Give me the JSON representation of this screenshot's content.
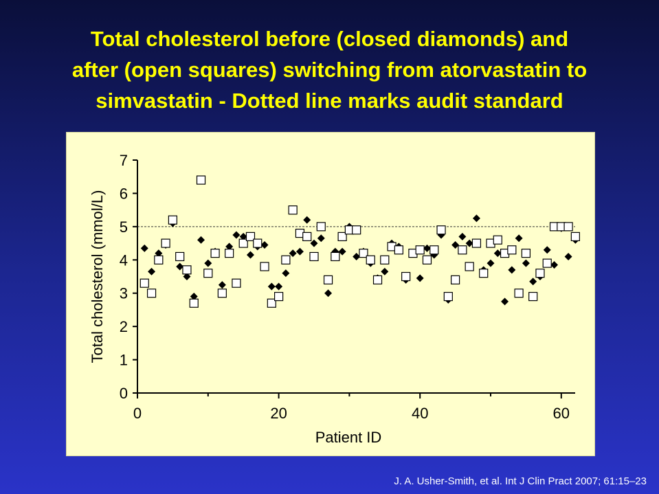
{
  "slide": {
    "title_lines": [
      "Total cholesterol before (closed diamonds) and",
      "after (open squares) switching from atorvastatin to",
      "simvastatin - Dotted line marks audit standard"
    ],
    "citation": "J. A. Usher-Smith, et al. Int J Clin Pract 2007; 61:15–23",
    "title_color": "#ffff00",
    "panel_color": "#ffffcc"
  },
  "chart_data": {
    "type": "scatter",
    "title": "",
    "xlabel": "Patient ID",
    "ylabel": "Total cholesterol (mmol/L)",
    "xlim": [
      0,
      62
    ],
    "ylim": [
      0,
      7
    ],
    "x_ticks": [
      "0",
      "20",
      "40",
      "60"
    ],
    "y_ticks": [
      "0",
      "1",
      "2",
      "3",
      "4",
      "5",
      "6",
      "7"
    ],
    "grid": false,
    "reference_line": {
      "y": 5,
      "style": "dotted"
    },
    "series": [
      {
        "marker": "filled-diamond",
        "color": "#000000",
        "points": [
          [
            1,
            4.35
          ],
          [
            2,
            3.65
          ],
          [
            3,
            4.2
          ],
          [
            4,
            4.45
          ],
          [
            5,
            5.1
          ],
          [
            6,
            3.8
          ],
          [
            7,
            3.5
          ],
          [
            8,
            2.9
          ],
          [
            9,
            4.6
          ],
          [
            10,
            3.9
          ],
          [
            11,
            4.25
          ],
          [
            12,
            3.25
          ],
          [
            13,
            4.4
          ],
          [
            14,
            4.75
          ],
          [
            15,
            4.7
          ],
          [
            16,
            4.15
          ],
          [
            17,
            4.4
          ],
          [
            18,
            4.45
          ],
          [
            19,
            3.2
          ],
          [
            20,
            3.2
          ],
          [
            21,
            3.6
          ],
          [
            22,
            4.2
          ],
          [
            23,
            4.25
          ],
          [
            24,
            5.2
          ],
          [
            25,
            4.5
          ],
          [
            26,
            4.65
          ],
          [
            27,
            3.0
          ],
          [
            28,
            4.25
          ],
          [
            29,
            4.25
          ],
          [
            30,
            5.0
          ],
          [
            31,
            4.1
          ],
          [
            32,
            4.25
          ],
          [
            33,
            3.9
          ],
          [
            34,
            3.45
          ],
          [
            35,
            3.65
          ],
          [
            36,
            4.5
          ],
          [
            37,
            4.4
          ],
          [
            38,
            3.4
          ],
          [
            39,
            4.2
          ],
          [
            40,
            3.45
          ],
          [
            41,
            4.35
          ],
          [
            42,
            4.15
          ],
          [
            43,
            4.75
          ],
          [
            44,
            2.8
          ],
          [
            45,
            4.45
          ],
          [
            46,
            4.7
          ],
          [
            47,
            4.5
          ],
          [
            48,
            5.25
          ],
          [
            49,
            3.7
          ],
          [
            50,
            3.9
          ],
          [
            51,
            4.2
          ],
          [
            52,
            2.75
          ],
          [
            53,
            3.7
          ],
          [
            54,
            4.65
          ],
          [
            55,
            3.9
          ],
          [
            56,
            3.35
          ],
          [
            57,
            3.5
          ],
          [
            58,
            4.3
          ],
          [
            59,
            3.85
          ],
          [
            60,
            4.95
          ],
          [
            61,
            4.1
          ],
          [
            62,
            4.6
          ]
        ]
      },
      {
        "marker": "open-square",
        "color": "#000000",
        "points": [
          [
            1,
            3.3
          ],
          [
            2,
            3.0
          ],
          [
            3,
            4.0
          ],
          [
            4,
            4.5
          ],
          [
            5,
            5.2
          ],
          [
            6,
            4.1
          ],
          [
            7,
            3.7
          ],
          [
            8,
            2.7
          ],
          [
            9,
            6.4
          ],
          [
            10,
            3.6
          ],
          [
            11,
            4.2
          ],
          [
            12,
            3.0
          ],
          [
            13,
            4.2
          ],
          [
            14,
            3.3
          ],
          [
            15,
            4.5
          ],
          [
            16,
            4.7
          ],
          [
            17,
            4.5
          ],
          [
            18,
            3.8
          ],
          [
            19,
            2.7
          ],
          [
            20,
            2.9
          ],
          [
            21,
            4.0
          ],
          [
            22,
            5.5
          ],
          [
            23,
            4.8
          ],
          [
            24,
            4.7
          ],
          [
            25,
            4.1
          ],
          [
            26,
            5.0
          ],
          [
            27,
            3.4
          ],
          [
            28,
            4.1
          ],
          [
            29,
            4.7
          ],
          [
            30,
            4.9
          ],
          [
            31,
            4.9
          ],
          [
            32,
            4.2
          ],
          [
            33,
            4.0
          ],
          [
            34,
            3.4
          ],
          [
            35,
            4.0
          ],
          [
            36,
            4.4
          ],
          [
            37,
            4.3
          ],
          [
            38,
            3.5
          ],
          [
            39,
            4.2
          ],
          [
            40,
            4.3
          ],
          [
            41,
            4.0
          ],
          [
            42,
            4.3
          ],
          [
            43,
            4.9
          ],
          [
            44,
            2.9
          ],
          [
            45,
            3.4
          ],
          [
            46,
            4.3
          ],
          [
            47,
            3.8
          ],
          [
            48,
            4.5
          ],
          [
            49,
            3.6
          ],
          [
            50,
            4.5
          ],
          [
            51,
            4.6
          ],
          [
            52,
            4.2
          ],
          [
            53,
            4.3
          ],
          [
            54,
            3.0
          ],
          [
            55,
            4.2
          ],
          [
            56,
            2.9
          ],
          [
            57,
            3.6
          ],
          [
            58,
            3.9
          ],
          [
            59,
            5.0
          ],
          [
            60,
            5.0
          ],
          [
            61,
            5.0
          ],
          [
            62,
            4.7
          ]
        ]
      }
    ]
  }
}
